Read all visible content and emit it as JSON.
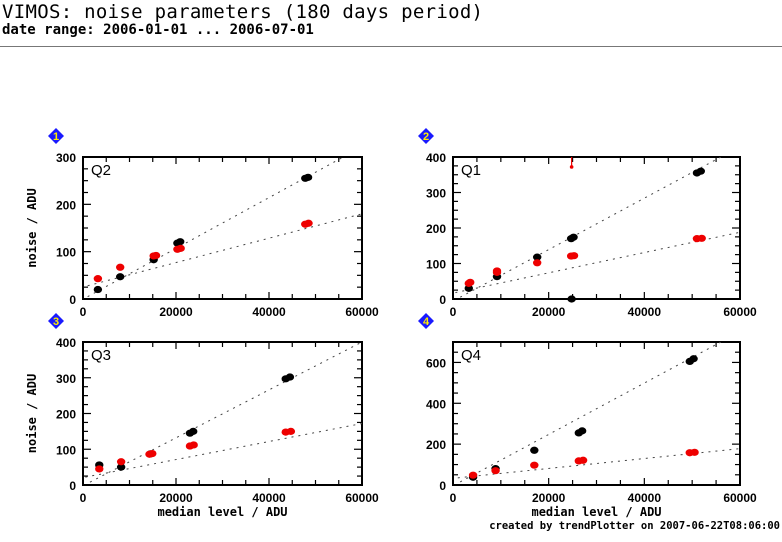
{
  "header": {
    "title": "VIMOS: noise parameters (180 days period)",
    "subtitle": "date range: 2006-01-01 ... 2006-07-01"
  },
  "footer": "created by trendPlotter on 2007-06-22T08:06:00",
  "colors": {
    "series_black": "#000000",
    "series_red": "#ee0000",
    "marker_blue": "#1a1aff",
    "marker_digit": "#ffee00"
  },
  "chart_data": [
    {
      "type": "scatter",
      "marker": "1",
      "panel_label": "Q2",
      "xlabel": "",
      "ylabel": "noise / ADU",
      "xlim": [
        0,
        60000
      ],
      "ylim": [
        0,
        300
      ],
      "xticks": [
        "0",
        "20000",
        "40000",
        "60000"
      ],
      "yticks": [
        "0",
        "100",
        "200",
        "300"
      ],
      "series": [
        {
          "name": "black",
          "color": "#000000",
          "points": [
            [
              3200,
              20
            ],
            [
              8000,
              47
            ],
            [
              15200,
              83
            ],
            [
              20300,
              118
            ],
            [
              20900,
              121
            ],
            [
              47800,
              255
            ],
            [
              48400,
              257
            ]
          ],
          "fit": [
            [
              1000,
              5
            ],
            [
              56000,
              300
            ]
          ]
        },
        {
          "name": "red",
          "color": "#ee0000",
          "points": [
            [
              3200,
              43
            ],
            [
              8000,
              67
            ],
            [
              15200,
              91
            ],
            [
              15700,
              92
            ],
            [
              20300,
              105
            ],
            [
              21000,
              107
            ],
            [
              47800,
              158
            ],
            [
              48500,
              160
            ]
          ],
          "fit": [
            [
              1000,
              28
            ],
            [
              60000,
              180
            ]
          ]
        }
      ]
    },
    {
      "type": "scatter",
      "marker": "2",
      "panel_label": "Q1",
      "xlabel": "",
      "ylabel": "",
      "xlim": [
        0,
        60000
      ],
      "ylim": [
        0,
        400
      ],
      "xticks": [
        "0",
        "20000",
        "40000",
        "60000"
      ],
      "yticks": [
        "0",
        "100",
        "200",
        "300",
        "400"
      ],
      "series": [
        {
          "name": "black",
          "color": "#000000",
          "points": [
            [
              3300,
              30
            ],
            [
              9200,
              63
            ],
            [
              17600,
              118
            ],
            [
              24700,
              170
            ],
            [
              25200,
              174
            ],
            [
              51000,
              355
            ],
            [
              51800,
              360
            ],
            [
              24800,
              0
            ]
          ],
          "fit": [
            [
              1500,
              5
            ],
            [
              56000,
              400
            ]
          ]
        },
        {
          "name": "red",
          "color": "#ee0000",
          "points": [
            [
              3300,
              44
            ],
            [
              3600,
              47
            ],
            [
              9200,
              75
            ],
            [
              9200,
              79
            ],
            [
              17600,
              102
            ],
            [
              24700,
              121
            ],
            [
              25300,
              122
            ],
            [
              51000,
              170
            ],
            [
              52000,
              171
            ],
            [
              24800,
              372
            ]
          ],
          "fit": [
            [
              500,
              18
            ],
            [
              60000,
              188
            ]
          ]
        }
      ]
    },
    {
      "type": "scatter",
      "marker": "3",
      "panel_label": "Q3",
      "xlabel": "median level / ADU",
      "ylabel": "noise / ADU",
      "xlim": [
        0,
        60000
      ],
      "ylim": [
        0,
        400
      ],
      "xticks": [
        "0",
        "20000",
        "40000",
        "60000"
      ],
      "yticks": [
        "0",
        "100",
        "200",
        "300",
        "400"
      ],
      "series": [
        {
          "name": "black",
          "color": "#000000",
          "points": [
            [
              3500,
              56
            ],
            [
              8200,
              50
            ],
            [
              14500,
              87
            ],
            [
              23000,
              145
            ],
            [
              23700,
              150
            ],
            [
              43600,
              297
            ],
            [
              44500,
              302
            ]
          ],
          "fit": [
            [
              1500,
              8
            ],
            [
              60000,
              400
            ]
          ]
        },
        {
          "name": "red",
          "color": "#ee0000",
          "points": [
            [
              3500,
              45
            ],
            [
              8200,
              65
            ],
            [
              14300,
              86
            ],
            [
              14900,
              88
            ],
            [
              23000,
              109
            ],
            [
              23800,
              112
            ],
            [
              43600,
              148
            ],
            [
              44700,
              150
            ]
          ],
          "fit": [
            [
              500,
              22
            ],
            [
              60000,
              172
            ]
          ]
        }
      ]
    },
    {
      "type": "scatter",
      "marker": "4",
      "panel_label": "Q4",
      "xlabel": "median level / ADU",
      "ylabel": "",
      "xlim": [
        0,
        60000
      ],
      "ylim": [
        0,
        700
      ],
      "xticks": [
        "0",
        "20000",
        "40000",
        "60000"
      ],
      "yticks": [
        "0",
        "200",
        "400",
        "600"
      ],
      "series": [
        {
          "name": "black",
          "color": "#000000",
          "points": [
            [
              4200,
              38
            ],
            [
              8900,
              80
            ],
            [
              17000,
              170
            ],
            [
              26300,
              255
            ],
            [
              27000,
              265
            ],
            [
              49500,
              605
            ],
            [
              50300,
              618
            ]
          ],
          "fit": [
            [
              1500,
              15
            ],
            [
              56000,
              700
            ]
          ]
        },
        {
          "name": "red",
          "color": "#ee0000",
          "points": [
            [
              4200,
              48
            ],
            [
              8900,
              70
            ],
            [
              17000,
              97
            ],
            [
              26300,
              118
            ],
            [
              27200,
              121
            ],
            [
              49500,
              158
            ],
            [
              50500,
              160
            ]
          ],
          "fit": [
            [
              1000,
              35
            ],
            [
              60000,
              178
            ]
          ]
        }
      ]
    }
  ]
}
